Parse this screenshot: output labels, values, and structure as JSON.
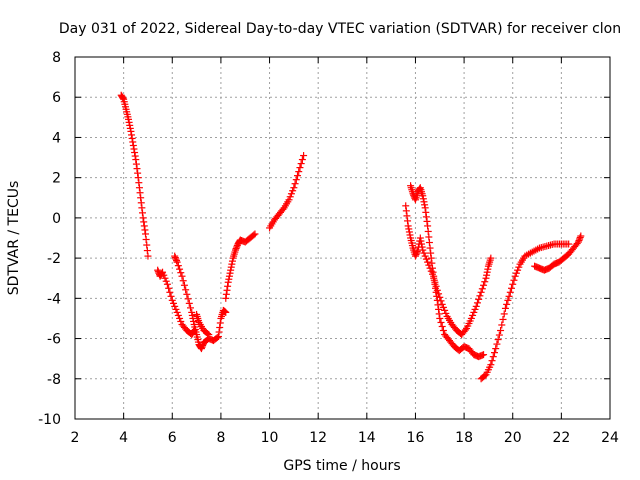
{
  "chart_data": {
    "type": "scatter",
    "title": "Day 031 of 2022, Sidereal Day-to-day VTEC variation (SDTVAR) for receiver clon",
    "xlabel": "GPS time / hours",
    "ylabel": "SDTVAR / TECUs",
    "xlim": [
      2,
      24
    ],
    "ylim": [
      -10,
      8
    ],
    "xticks": [
      2,
      4,
      6,
      8,
      10,
      12,
      14,
      16,
      18,
      20,
      22,
      24
    ],
    "yticks": [
      -10,
      -8,
      -6,
      -4,
      -2,
      0,
      2,
      4,
      6,
      8
    ],
    "grid": true,
    "marker": "plus",
    "color": "#ff0000",
    "series": [
      {
        "name": "segment-1",
        "points": [
          [
            3.9,
            6.1
          ],
          [
            4.0,
            5.9
          ],
          [
            4.1,
            5.4
          ],
          [
            4.2,
            4.9
          ],
          [
            4.3,
            4.3
          ],
          [
            4.4,
            3.6
          ],
          [
            4.5,
            2.9
          ],
          [
            4.6,
            2.0
          ],
          [
            4.7,
            1.0
          ],
          [
            4.8,
            0.0
          ],
          [
            4.9,
            -0.8
          ],
          [
            5.0,
            -1.9
          ]
        ]
      },
      {
        "name": "segment-2",
        "points": [
          [
            5.4,
            -2.6
          ],
          [
            5.5,
            -2.9
          ],
          [
            5.6,
            -2.7
          ],
          [
            5.8,
            -3.3
          ],
          [
            6.0,
            -4.1
          ],
          [
            6.2,
            -4.7
          ],
          [
            6.4,
            -5.3
          ],
          [
            6.6,
            -5.6
          ],
          [
            6.8,
            -5.8
          ],
          [
            6.9,
            -5.6
          ]
        ]
      },
      {
        "name": "segment-3",
        "points": [
          [
            6.1,
            -1.9
          ],
          [
            6.2,
            -2.2
          ],
          [
            6.4,
            -2.9
          ],
          [
            6.6,
            -3.8
          ],
          [
            6.8,
            -4.7
          ],
          [
            6.9,
            -5.3
          ],
          [
            7.0,
            -5.8
          ],
          [
            7.1,
            -6.3
          ],
          [
            7.2,
            -6.5
          ],
          [
            7.3,
            -6.2
          ],
          [
            7.5,
            -6.0
          ],
          [
            7.7,
            -6.1
          ],
          [
            7.9,
            -5.9
          ],
          [
            8.0,
            -5.0
          ],
          [
            8.1,
            -4.6
          ],
          [
            8.2,
            -4.7
          ]
        ]
      },
      {
        "name": "segment-4",
        "points": [
          [
            7.0,
            -4.8
          ],
          [
            7.1,
            -5.2
          ],
          [
            7.3,
            -5.6
          ],
          [
            7.5,
            -5.8
          ]
        ]
      },
      {
        "name": "segment-5",
        "points": [
          [
            8.2,
            -4.0
          ],
          [
            8.3,
            -3.2
          ],
          [
            8.4,
            -2.6
          ],
          [
            8.5,
            -2.0
          ],
          [
            8.6,
            -1.6
          ],
          [
            8.7,
            -1.3
          ],
          [
            8.8,
            -1.1
          ],
          [
            9.0,
            -1.2
          ],
          [
            9.2,
            -1.0
          ],
          [
            9.4,
            -0.8
          ]
        ]
      },
      {
        "name": "segment-6",
        "points": [
          [
            10.0,
            -0.5
          ],
          [
            10.2,
            -0.1
          ],
          [
            10.4,
            0.2
          ],
          [
            10.6,
            0.5
          ],
          [
            10.8,
            0.9
          ],
          [
            11.0,
            1.5
          ],
          [
            11.2,
            2.3
          ],
          [
            11.4,
            3.1
          ]
        ]
      },
      {
        "name": "segment-7",
        "points": [
          [
            15.6,
            0.6
          ],
          [
            15.7,
            -0.4
          ],
          [
            15.8,
            -1.0
          ],
          [
            15.9,
            -1.5
          ],
          [
            16.0,
            -1.9
          ],
          [
            16.1,
            -1.6
          ],
          [
            16.2,
            -1.0
          ],
          [
            16.3,
            -1.6
          ],
          [
            16.5,
            -2.2
          ],
          [
            16.7,
            -2.8
          ],
          [
            16.9,
            -3.6
          ],
          [
            17.1,
            -4.3
          ],
          [
            17.3,
            -4.9
          ],
          [
            17.5,
            -5.3
          ],
          [
            17.7,
            -5.6
          ],
          [
            17.9,
            -5.8
          ],
          [
            18.1,
            -5.5
          ],
          [
            18.3,
            -5.0
          ],
          [
            18.5,
            -4.4
          ],
          [
            18.7,
            -3.7
          ],
          [
            18.9,
            -3.0
          ],
          [
            19.0,
            -2.4
          ],
          [
            19.1,
            -2.0
          ]
        ]
      },
      {
        "name": "segment-8",
        "points": [
          [
            15.8,
            1.6
          ],
          [
            15.9,
            1.2
          ],
          [
            16.0,
            0.9
          ],
          [
            16.1,
            1.3
          ],
          [
            16.2,
            1.5
          ],
          [
            16.3,
            1.1
          ],
          [
            16.4,
            0.5
          ],
          [
            16.5,
            -0.4
          ],
          [
            16.6,
            -1.5
          ],
          [
            16.7,
            -2.5
          ],
          [
            16.8,
            -3.3
          ],
          [
            16.9,
            -4.1
          ],
          [
            17.0,
            -5.0
          ],
          [
            17.2,
            -5.8
          ],
          [
            17.4,
            -6.1
          ],
          [
            17.6,
            -6.4
          ],
          [
            17.8,
            -6.6
          ],
          [
            18.0,
            -6.4
          ],
          [
            18.2,
            -6.5
          ],
          [
            18.4,
            -6.8
          ],
          [
            18.6,
            -6.9
          ],
          [
            18.8,
            -6.8
          ]
        ]
      },
      {
        "name": "segment-9",
        "points": [
          [
            18.7,
            -8.0
          ],
          [
            18.9,
            -7.8
          ],
          [
            19.1,
            -7.3
          ],
          [
            19.3,
            -6.5
          ],
          [
            19.5,
            -5.6
          ],
          [
            19.7,
            -4.5
          ],
          [
            19.9,
            -3.7
          ],
          [
            20.1,
            -2.9
          ],
          [
            20.3,
            -2.3
          ],
          [
            20.5,
            -1.9
          ],
          [
            20.8,
            -1.7
          ],
          [
            21.1,
            -1.5
          ],
          [
            21.4,
            -1.4
          ],
          [
            21.7,
            -1.3
          ],
          [
            22.0,
            -1.3
          ],
          [
            22.3,
            -1.3
          ]
        ]
      },
      {
        "name": "segment-10",
        "points": [
          [
            20.9,
            -2.4
          ],
          [
            21.1,
            -2.5
          ],
          [
            21.3,
            -2.6
          ],
          [
            21.5,
            -2.5
          ],
          [
            21.7,
            -2.3
          ],
          [
            21.9,
            -2.2
          ],
          [
            22.1,
            -2.0
          ],
          [
            22.3,
            -1.8
          ],
          [
            22.5,
            -1.5
          ],
          [
            22.7,
            -1.2
          ],
          [
            22.8,
            -0.9
          ]
        ]
      }
    ]
  }
}
